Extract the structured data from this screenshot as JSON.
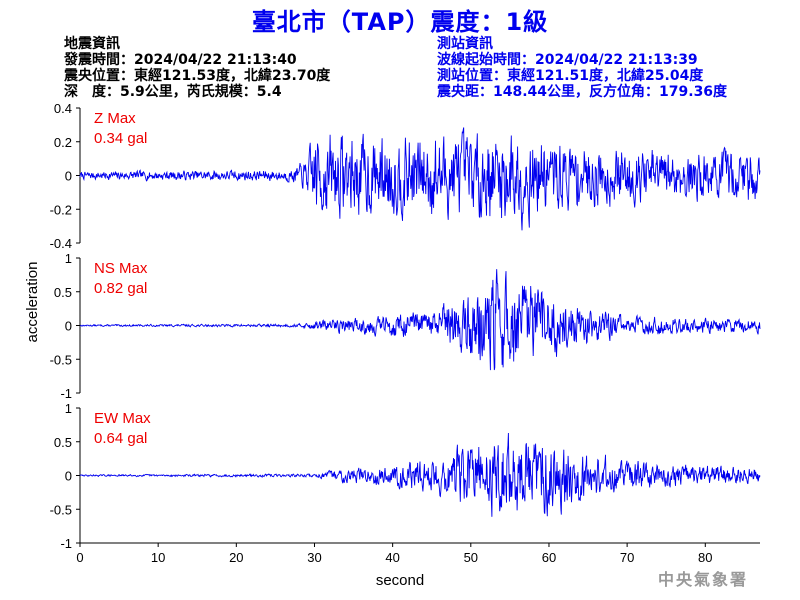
{
  "title": "臺北市（TAP）震度：1級",
  "info_left": [
    "地震資訊",
    "發震時間：2024/04/22 21:13:40",
    "震央位置：東經121.53度，北緯23.70度",
    "深　度：5.9公里，芮氏規模：5.4"
  ],
  "info_right": [
    "測站資訊",
    "波線起始時間：2024/04/22 21:13:39",
    "測站位置：東經121.51度，北緯25.04度",
    "震央距：148.44公里，反方位角：179.36度"
  ],
  "footer": "中央氣象署",
  "colors": {
    "trace": "#0000ee",
    "title": "#0000ee",
    "label": "#ee0000",
    "axis": "#000000"
  },
  "chart_data": {
    "type": "line",
    "xlabel": "second",
    "ylabel": "acceleration",
    "xlim": [
      0,
      87
    ],
    "xticks": [
      0,
      10,
      20,
      30,
      40,
      50,
      60,
      70,
      80
    ],
    "grid": false,
    "panels": [
      {
        "name": "Z",
        "label": "Z Max",
        "max_text": "0.34 gal",
        "ylim": [
          -0.4,
          0.4
        ],
        "yticks": [
          -0.4,
          -0.2,
          0,
          0.2,
          0.4
        ],
        "ytick_labels": [
          "-0.4",
          "-0.2",
          "0",
          "0.2",
          "0.4"
        ],
        "envelope": [
          [
            0,
            0.02
          ],
          [
            27,
            0.03
          ],
          [
            29,
            0.08
          ],
          [
            30,
            0.22
          ],
          [
            40,
            0.2
          ],
          [
            45,
            0.22
          ],
          [
            50,
            0.2
          ],
          [
            55,
            0.26
          ],
          [
            60,
            0.18
          ],
          [
            70,
            0.14
          ],
          [
            80,
            0.12
          ],
          [
            87,
            0.14
          ]
        ],
        "seed": 7
      },
      {
        "name": "NS",
        "label": "NS Max",
        "max_text": "0.82 gal",
        "ylim": [
          -1,
          1
        ],
        "yticks": [
          -1,
          -0.5,
          0,
          0.5,
          1
        ],
        "ytick_labels": [
          "-1",
          "-0.5",
          "0",
          "0.5",
          "1"
        ],
        "envelope": [
          [
            0,
            0.01
          ],
          [
            28,
            0.02
          ],
          [
            31,
            0.07
          ],
          [
            40,
            0.14
          ],
          [
            45,
            0.18
          ],
          [
            50,
            0.45
          ],
          [
            53,
            0.7
          ],
          [
            57,
            0.55
          ],
          [
            60,
            0.45
          ],
          [
            63,
            0.28
          ],
          [
            70,
            0.12
          ],
          [
            80,
            0.1
          ],
          [
            87,
            0.09
          ]
        ],
        "seed": 13
      },
      {
        "name": "EW",
        "label": "EW Max",
        "max_text": "0.64 gal",
        "ylim": [
          -1,
          1
        ],
        "yticks": [
          -1,
          -0.5,
          0,
          0.5,
          1
        ],
        "ytick_labels": [
          "-1",
          "-0.5",
          "0",
          "0.5",
          "1"
        ],
        "envelope": [
          [
            0,
            0.01
          ],
          [
            30,
            0.02
          ],
          [
            33,
            0.08
          ],
          [
            40,
            0.13
          ],
          [
            45,
            0.22
          ],
          [
            49,
            0.4
          ],
          [
            54,
            0.52
          ],
          [
            59,
            0.5
          ],
          [
            63,
            0.35
          ],
          [
            68,
            0.22
          ],
          [
            75,
            0.14
          ],
          [
            80,
            0.12
          ],
          [
            87,
            0.11
          ]
        ],
        "seed": 29
      }
    ]
  }
}
